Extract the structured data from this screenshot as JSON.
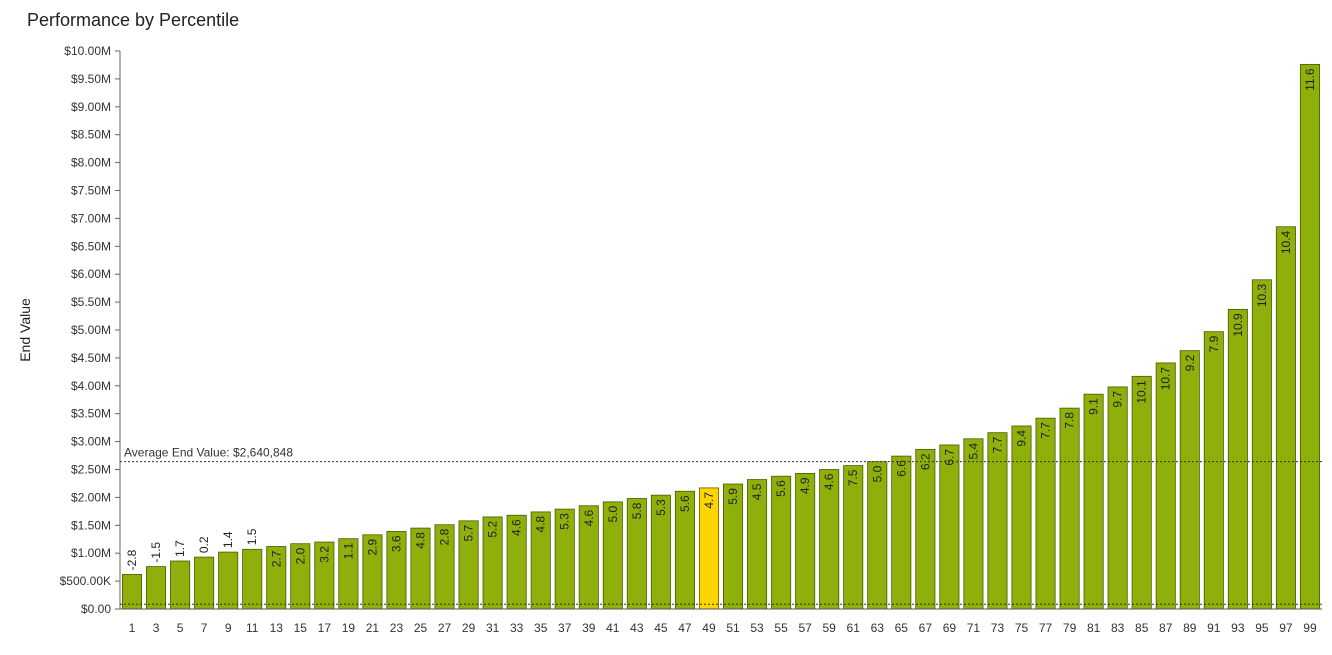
{
  "chart_data": {
    "type": "bar",
    "title": "Performance by Percentile",
    "ylabel": "End Value",
    "xlabel": "",
    "ylim": [
      0,
      10000000
    ],
    "y_ticks": [
      {
        "value": 0,
        "label": "$0.00"
      },
      {
        "value": 500000,
        "label": "$500.00K"
      },
      {
        "value": 1000000,
        "label": "$1.00M"
      },
      {
        "value": 1500000,
        "label": "$1.50M"
      },
      {
        "value": 2000000,
        "label": "$2.00M"
      },
      {
        "value": 2500000,
        "label": "$2.50M"
      },
      {
        "value": 3000000,
        "label": "$3.00M"
      },
      {
        "value": 3500000,
        "label": "$3.50M"
      },
      {
        "value": 4000000,
        "label": "$4.00M"
      },
      {
        "value": 4500000,
        "label": "$4.50M"
      },
      {
        "value": 5000000,
        "label": "$5.00M"
      },
      {
        "value": 5500000,
        "label": "$5.50M"
      },
      {
        "value": 6000000,
        "label": "$6.00M"
      },
      {
        "value": 6500000,
        "label": "$6.50M"
      },
      {
        "value": 7000000,
        "label": "$7.00M"
      },
      {
        "value": 7500000,
        "label": "$7.50M"
      },
      {
        "value": 8000000,
        "label": "$8.00M"
      },
      {
        "value": 8500000,
        "label": "$8.50M"
      },
      {
        "value": 9000000,
        "label": "$9.00M"
      },
      {
        "value": 9500000,
        "label": "$9.50M"
      },
      {
        "value": 10000000,
        "label": "$10.00M"
      }
    ],
    "categories": [
      "1",
      "3",
      "5",
      "7",
      "9",
      "11",
      "13",
      "15",
      "17",
      "19",
      "21",
      "23",
      "25",
      "27",
      "29",
      "31",
      "33",
      "35",
      "37",
      "39",
      "41",
      "43",
      "45",
      "47",
      "49",
      "51",
      "53",
      "55",
      "57",
      "59",
      "61",
      "63",
      "65",
      "67",
      "69",
      "71",
      "73",
      "75",
      "77",
      "79",
      "81",
      "83",
      "85",
      "87",
      "89",
      "91",
      "93",
      "95",
      "97",
      "99"
    ],
    "values": [
      620000,
      760000,
      860000,
      930000,
      1020000,
      1070000,
      1120000,
      1170000,
      1200000,
      1260000,
      1330000,
      1390000,
      1450000,
      1510000,
      1580000,
      1650000,
      1680000,
      1740000,
      1790000,
      1850000,
      1920000,
      1980000,
      2040000,
      2110000,
      2170000,
      2240000,
      2320000,
      2380000,
      2430000,
      2500000,
      2570000,
      2640000,
      2740000,
      2860000,
      2940000,
      3050000,
      3160000,
      3280000,
      3420000,
      3600000,
      3850000,
      3980000,
      4170000,
      4410000,
      4630000,
      4970000,
      5370000,
      5900000,
      6850000,
      9760000
    ],
    "bar_labels": [
      "-2.8",
      "-1.5",
      "1.7",
      "0.2",
      "1.4",
      "1.5",
      "2.7",
      "2.0",
      "3.2",
      "1.1",
      "2.9",
      "3.6",
      "4.8",
      "2.8",
      "5.7",
      "5.2",
      "4.6",
      "4.8",
      "5.3",
      "4.6",
      "5.0",
      "5.8",
      "5.3",
      "5.6",
      "4.7",
      "5.9",
      "4.5",
      "5.6",
      "4.9",
      "4.6",
      "7.5",
      "5.0",
      "6.6",
      "6.2",
      "6.7",
      "5.4",
      "7.7",
      "9.4",
      "7.7",
      "7.8",
      "9.1",
      "9.7",
      "10.1",
      "10.7",
      "9.2",
      "7.9",
      "10.9",
      "10.3",
      "10.4",
      "11.6"
    ],
    "highlight_category": "49",
    "reference_lines": [
      {
        "value": 2640848,
        "label": "Average End Value: $2,640,848"
      },
      {
        "value": 85000,
        "label": ""
      }
    ],
    "colors": {
      "bar": "#8fb00a",
      "bar_stroke": "#4a5a00",
      "highlight": "#ffd400",
      "highlight_stroke": "#6a5a00"
    },
    "grid": false,
    "legend": "none"
  }
}
